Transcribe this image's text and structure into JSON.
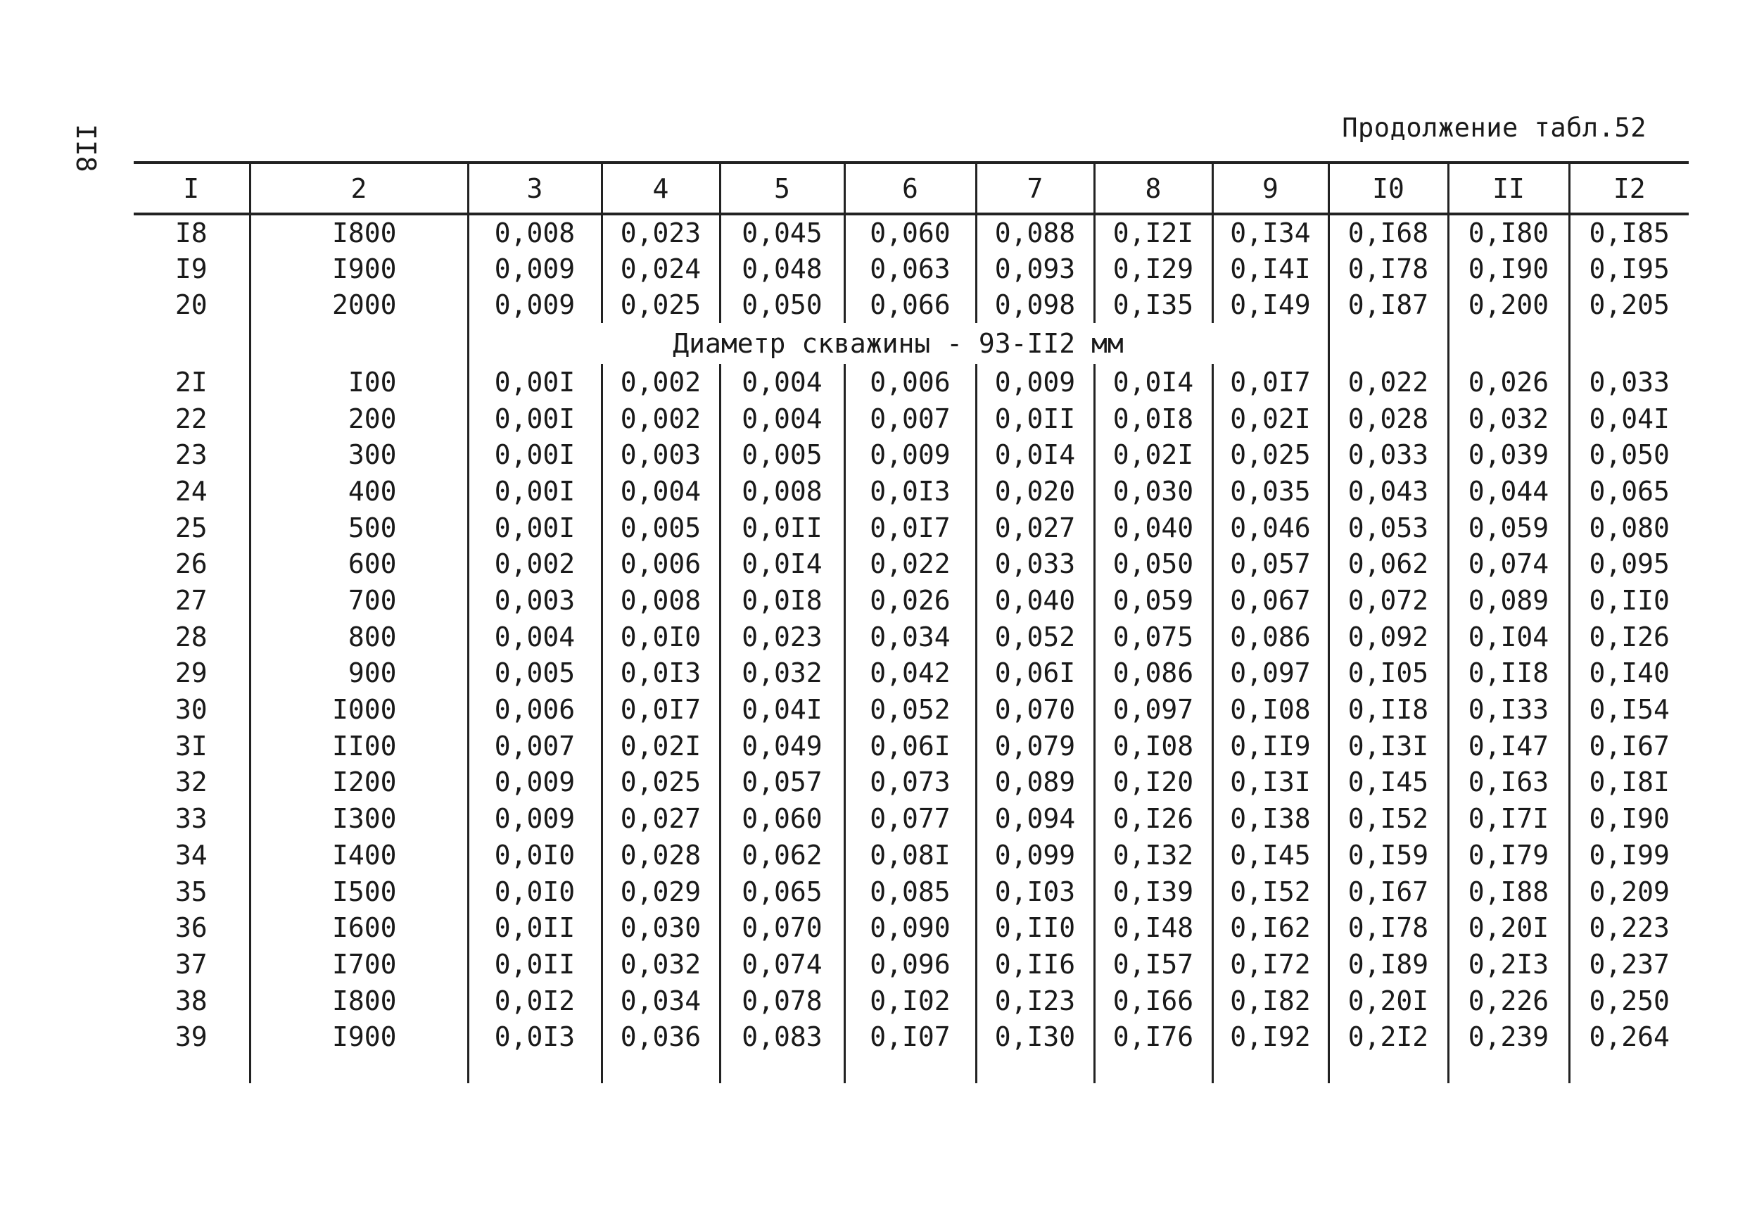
{
  "page_number": "II8",
  "caption": "Продолжение табл.52",
  "columns": [
    "I",
    "2",
    "3",
    "4",
    "5",
    "6",
    "7",
    "8",
    "9",
    "I0",
    "II",
    "I2"
  ],
  "rows_top": [
    [
      "I8",
      "I800",
      "0,008",
      "0,023",
      "0,045",
      "0,060",
      "0,088",
      "0,I2I",
      "0,I34",
      "0,I68",
      "0,I80",
      "0,I85"
    ],
    [
      "I9",
      "I900",
      "0,009",
      "0,024",
      "0,048",
      "0,063",
      "0,093",
      "0,I29",
      "0,I4I",
      "0,I78",
      "0,I90",
      "0,I95"
    ],
    [
      "20",
      "2000",
      "0,009",
      "0,025",
      "0,050",
      "0,066",
      "0,098",
      "0,I35",
      "0,I49",
      "0,I87",
      "0,200",
      "0,205"
    ]
  ],
  "section_title": "Диаметр скважины - 93-II2 мм",
  "rows_bottom": [
    [
      "2I",
      "I00",
      "0,00I",
      "0,002",
      "0,004",
      "0,006",
      "0,009",
      "0,0I4",
      "0,0I7",
      "0,022",
      "0,026",
      "0,033"
    ],
    [
      "22",
      "200",
      "0,00I",
      "0,002",
      "0,004",
      "0,007",
      "0,0II",
      "0,0I8",
      "0,02I",
      "0,028",
      "0,032",
      "0,04I"
    ],
    [
      "23",
      "300",
      "0,00I",
      "0,003",
      "0,005",
      "0,009",
      "0,0I4",
      "0,02I",
      "0,025",
      "0,033",
      "0,039",
      "0,050"
    ],
    [
      "24",
      "400",
      "0,00I",
      "0,004",
      "0,008",
      "0,0I3",
      "0,020",
      "0,030",
      "0,035",
      "0,043",
      "0,044",
      "0,065"
    ],
    [
      "25",
      "500",
      "0,00I",
      "0,005",
      "0,0II",
      "0,0I7",
      "0,027",
      "0,040",
      "0,046",
      "0,053",
      "0,059",
      "0,080"
    ],
    [
      "26",
      "600",
      "0,002",
      "0,006",
      "0,0I4",
      "0,022",
      "0,033",
      "0,050",
      "0,057",
      "0,062",
      "0,074",
      "0,095"
    ],
    [
      "27",
      "700",
      "0,003",
      "0,008",
      "0,0I8",
      "0,026",
      "0,040",
      "0,059",
      "0,067",
      "0,072",
      "0,089",
      "0,II0"
    ],
    [
      "28",
      "800",
      "0,004",
      "0,0I0",
      "0,023",
      "0,034",
      "0,052",
      "0,075",
      "0,086",
      "0,092",
      "0,I04",
      "0,I26"
    ],
    [
      "29",
      "900",
      "0,005",
      "0,0I3",
      "0,032",
      "0,042",
      "0,06I",
      "0,086",
      "0,097",
      "0,I05",
      "0,II8",
      "0,I40"
    ],
    [
      "30",
      "I000",
      "0,006",
      "0,0I7",
      "0,04I",
      "0,052",
      "0,070",
      "0,097",
      "0,I08",
      "0,II8",
      "0,I33",
      "0,I54"
    ],
    [
      "3I",
      "II00",
      "0,007",
      "0,02I",
      "0,049",
      "0,06I",
      "0,079",
      "0,I08",
      "0,II9",
      "0,I3I",
      "0,I47",
      "0,I67"
    ],
    [
      "32",
      "I200",
      "0,009",
      "0,025",
      "0,057",
      "0,073",
      "0,089",
      "0,I20",
      "0,I3I",
      "0,I45",
      "0,I63",
      "0,I8I"
    ],
    [
      "33",
      "I300",
      "0,009",
      "0,027",
      "0,060",
      "0,077",
      "0,094",
      "0,I26",
      "0,I38",
      "0,I52",
      "0,I7I",
      "0,I90"
    ],
    [
      "34",
      "I400",
      "0,0I0",
      "0,028",
      "0,062",
      "0,08I",
      "0,099",
      "0,I32",
      "0,I45",
      "0,I59",
      "0,I79",
      "0,I99"
    ],
    [
      "35",
      "I500",
      "0,0I0",
      "0,029",
      "0,065",
      "0,085",
      "0,I03",
      "0,I39",
      "0,I52",
      "0,I67",
      "0,I88",
      "0,209"
    ],
    [
      "36",
      "I600",
      "0,0II",
      "0,030",
      "0,070",
      "0,090",
      "0,II0",
      "0,I48",
      "0,I62",
      "0,I78",
      "0,20I",
      "0,223"
    ],
    [
      "37",
      "I700",
      "0,0II",
      "0,032",
      "0,074",
      "0,096",
      "0,II6",
      "0,I57",
      "0,I72",
      "0,I89",
      "0,2I3",
      "0,237"
    ],
    [
      "38",
      "I800",
      "0,0I2",
      "0,034",
      "0,078",
      "0,I02",
      "0,I23",
      "0,I66",
      "0,I82",
      "0,20I",
      "0,226",
      "0,250"
    ],
    [
      "39",
      "I900",
      "0,0I3",
      "0,036",
      "0,083",
      "0,I07",
      "0,I30",
      "0,I76",
      "0,I92",
      "0,2I2",
      "0,239",
      "0,264"
    ]
  ]
}
